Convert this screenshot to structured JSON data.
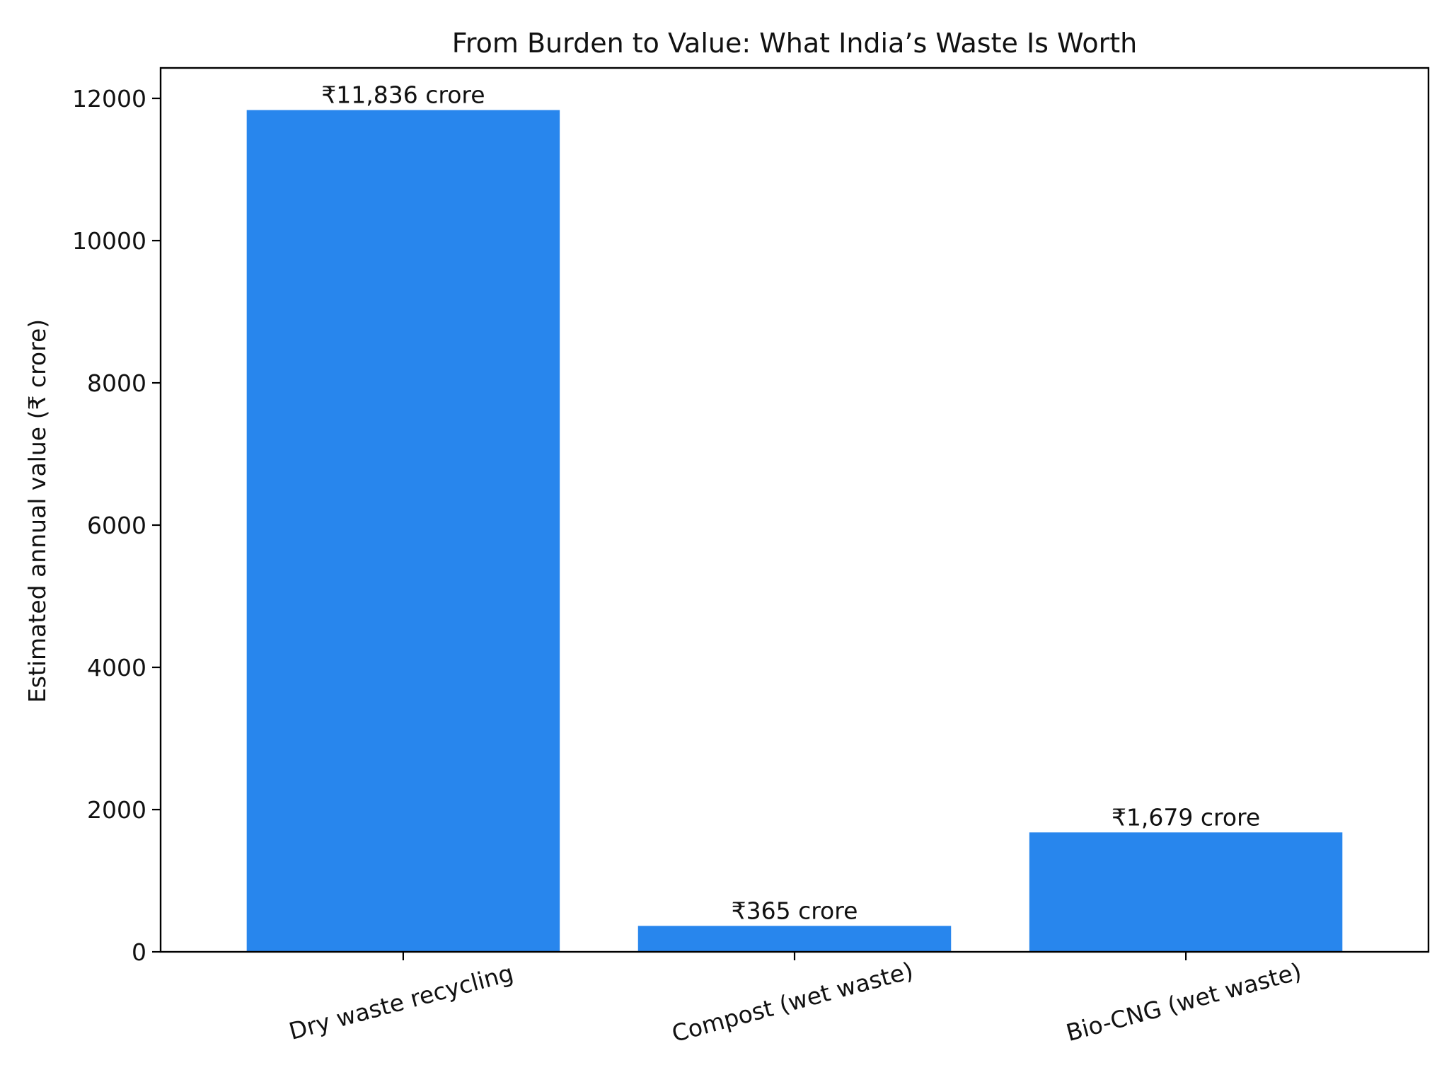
{
  "chart_data": {
    "type": "bar",
    "title": "From Burden to Value: What India’s Waste Is Worth",
    "xlabel": "",
    "ylabel": "Estimated annual value (₹ crore)",
    "categories": [
      "Dry waste recycling",
      "Compost (wet waste)",
      "Bio-CNG (wet waste)"
    ],
    "values": [
      11836,
      365,
      1679
    ],
    "data_labels": [
      "₹11,836 crore",
      "₹365 crore",
      "₹1,679 crore"
    ],
    "ylim": [
      0,
      12428
    ],
    "yticks": [
      0,
      2000,
      4000,
      6000,
      8000,
      10000,
      12000
    ],
    "grid": false,
    "legend": "none",
    "bar_color": "#2886ed"
  }
}
